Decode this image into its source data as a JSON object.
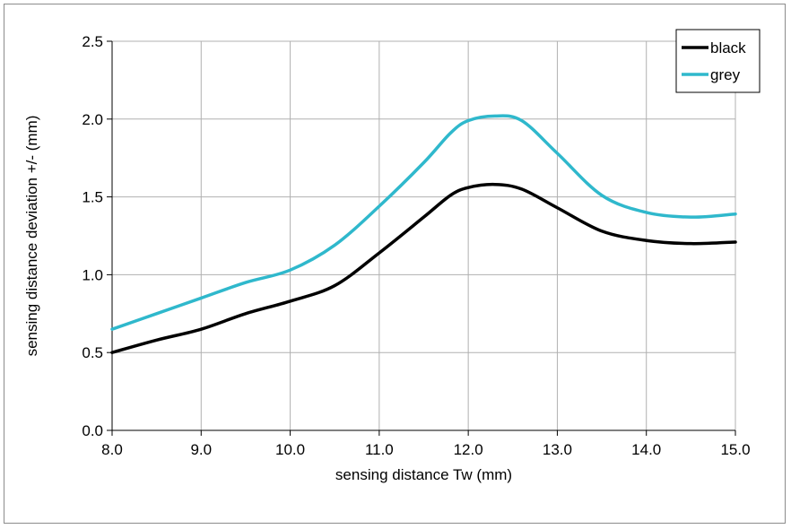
{
  "chart_data": {
    "type": "line",
    "xlabel": "sensing distance Tw (mm)",
    "ylabel": "sensing distance deviation +/- (mm)",
    "xlim": [
      8.0,
      15.0
    ],
    "ylim": [
      0.0,
      2.5
    ],
    "x_ticks": [
      "8.0",
      "9.0",
      "10.0",
      "11.0",
      "12.0",
      "13.0",
      "14.0",
      "15.0"
    ],
    "y_ticks": [
      "0.0",
      "0.5",
      "1.0",
      "1.5",
      "2.0",
      "2.5"
    ],
    "grid": true,
    "legend_position": "top-right",
    "series": [
      {
        "name": "black",
        "color": "#000000",
        "x": [
          8.0,
          8.5,
          9.0,
          9.5,
          10.0,
          10.5,
          11.0,
          11.5,
          11.8,
          12.0,
          12.3,
          12.6,
          13.0,
          13.5,
          14.0,
          14.5,
          15.0
        ],
        "y": [
          0.5,
          0.58,
          0.65,
          0.75,
          0.83,
          0.93,
          1.14,
          1.37,
          1.51,
          1.56,
          1.58,
          1.55,
          1.43,
          1.28,
          1.22,
          1.2,
          1.21
        ]
      },
      {
        "name": "grey",
        "color": "#2fb8cc",
        "x": [
          8.0,
          8.5,
          9.0,
          9.5,
          10.0,
          10.5,
          11.0,
          11.5,
          11.8,
          12.0,
          12.3,
          12.6,
          13.0,
          13.5,
          14.0,
          14.5,
          15.0
        ],
        "y": [
          0.65,
          0.75,
          0.85,
          0.95,
          1.03,
          1.19,
          1.44,
          1.72,
          1.91,
          1.99,
          2.02,
          1.99,
          1.78,
          1.51,
          1.4,
          1.37,
          1.39
        ]
      }
    ]
  }
}
